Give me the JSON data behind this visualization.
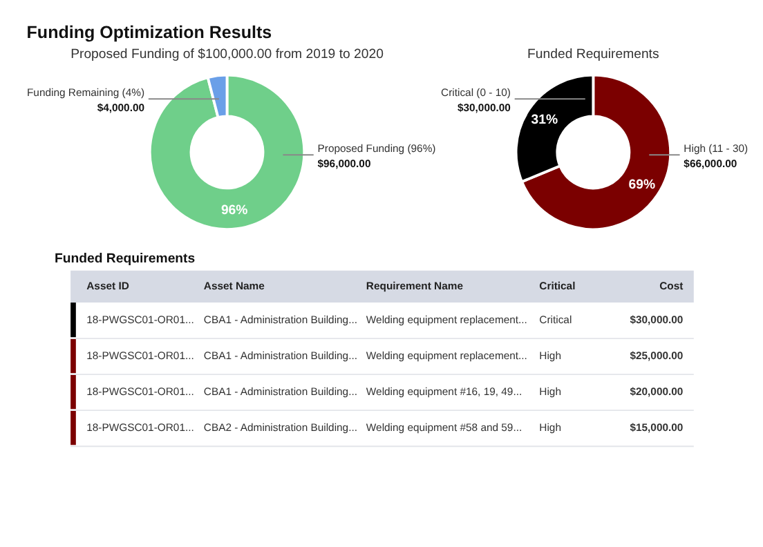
{
  "chart_data": [
    {
      "type": "donut",
      "title": "Proposed Funding of $100,000.00 from 2019 to 2020",
      "categories": [
        "Proposed Funding (96%)",
        "Funding Remaining (4%)"
      ],
      "values": [
        96000,
        4000
      ],
      "colors": [
        "#6fcf8a",
        "#6a9fe8"
      ],
      "value_labels": [
        "$96,000.00",
        "$4,000.00"
      ],
      "annotations": [
        "Funding Optimization Results",
        {
          "text": "96%",
          "x": "Proposed Funding (96%)"
        }
      ],
      "legend": false
    },
    {
      "type": "donut",
      "title": "Funded Requirements",
      "categories": [
        "High (11 - 30)",
        "Critical (0 - 10)"
      ],
      "values": [
        66000,
        30000
      ],
      "colors": [
        "#7b0000",
        "#000000"
      ],
      "value_labels": [
        "$66,000.00",
        "$30,000.00"
      ],
      "annotations": [
        {
          "text": "69%",
          "x": "High (11 - 30)"
        },
        {
          "text": "31%",
          "x": "Critical (0 - 10)"
        }
      ],
      "legend": false
    },
    {
      "type": "other",
      "title": "Funded Requirements",
      "categories": [
        "Asset ID",
        "Asset Name",
        "Requirement Name",
        "Critical",
        "Cost"
      ],
      "cell_labels": [
        [
          "18-PWGSC01-OR01...",
          "CBA1 - Administration Building...",
          "Welding equipment replacement...",
          "Critical",
          "$30,000.00"
        ],
        [
          "18-PWGSC01-OR01...",
          "CBA1 - Administration Building...",
          "Welding equipment replacement...",
          "High",
          "$25,000.00"
        ],
        [
          "18-PWGSC01-OR01...",
          "CBA1 - Administration Building...",
          "Welding equipment #16, 19, 49...",
          "High",
          "$20,000.00"
        ],
        [
          "18-PWGSC01-OR01...",
          "CBA2 - Administration Building...",
          "Welding equipment #58 and 59...",
          "High",
          "$15,000.00"
        ]
      ],
      "colors": [
        "#000000",
        "#7b0000",
        "#7b0000",
        "#7b0000"
      ]
    }
  ]
}
